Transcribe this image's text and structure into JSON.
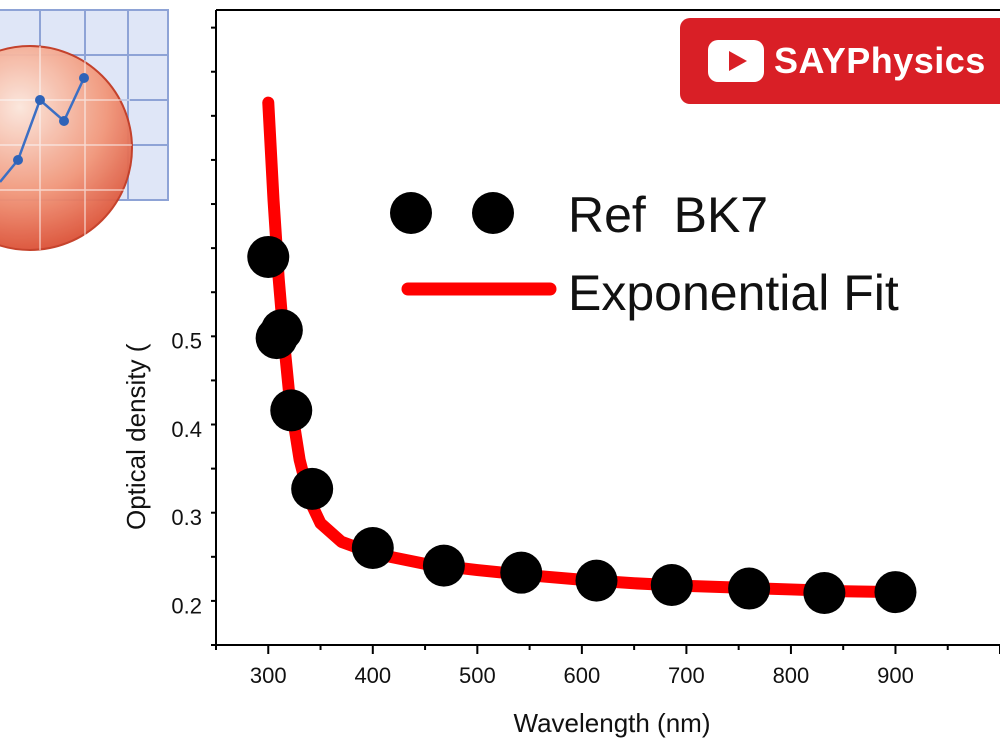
{
  "chart_data": {
    "type": "scatter",
    "series": [
      {
        "name": "Ref  BK7",
        "kind": "scatter",
        "x": [
          300,
          308,
          313,
          322,
          342,
          400,
          468,
          542,
          614,
          686,
          760,
          832,
          900
        ],
        "y": [
          0.595,
          0.503,
          0.512,
          0.421,
          0.332,
          0.265,
          0.245,
          0.237,
          0.228,
          0.223,
          0.219,
          0.214,
          0.215
        ]
      },
      {
        "name": "Exponential Fit",
        "kind": "line",
        "x": [
          300,
          305,
          310,
          315,
          320,
          330,
          340,
          350,
          370,
          400,
          450,
          500,
          550,
          600,
          650,
          700,
          750,
          800,
          850,
          900
        ],
        "y": [
          0.77,
          0.66,
          0.57,
          0.5,
          0.44,
          0.365,
          0.318,
          0.293,
          0.272,
          0.259,
          0.247,
          0.24,
          0.234,
          0.229,
          0.225,
          0.222,
          0.22,
          0.218,
          0.216,
          0.215
        ]
      }
    ],
    "xlabel": "Wavelength (nm)",
    "ylabel": "Optical density (",
    "xlim": [
      250,
      1000
    ],
    "ylim": [
      0.155,
      0.875
    ],
    "xticks": [
      300,
      400,
      500,
      600,
      700,
      800,
      900
    ],
    "xtick_labels": [
      "300",
      "400",
      "500",
      "600",
      "700",
      "800",
      "900"
    ],
    "yticks": [
      0.2,
      0.3,
      0.4,
      0.5
    ],
    "ytick_labels": [
      "0.2",
      "0.3",
      "0.4",
      "0.5"
    ],
    "legend_position": "upper-right",
    "colors": {
      "scatter": "#000000",
      "line": "#ff0000"
    }
  },
  "badge": {
    "text": "SAYPhysics",
    "icon": "play-icon"
  },
  "logo": {
    "icon": "chart-app-logo"
  }
}
